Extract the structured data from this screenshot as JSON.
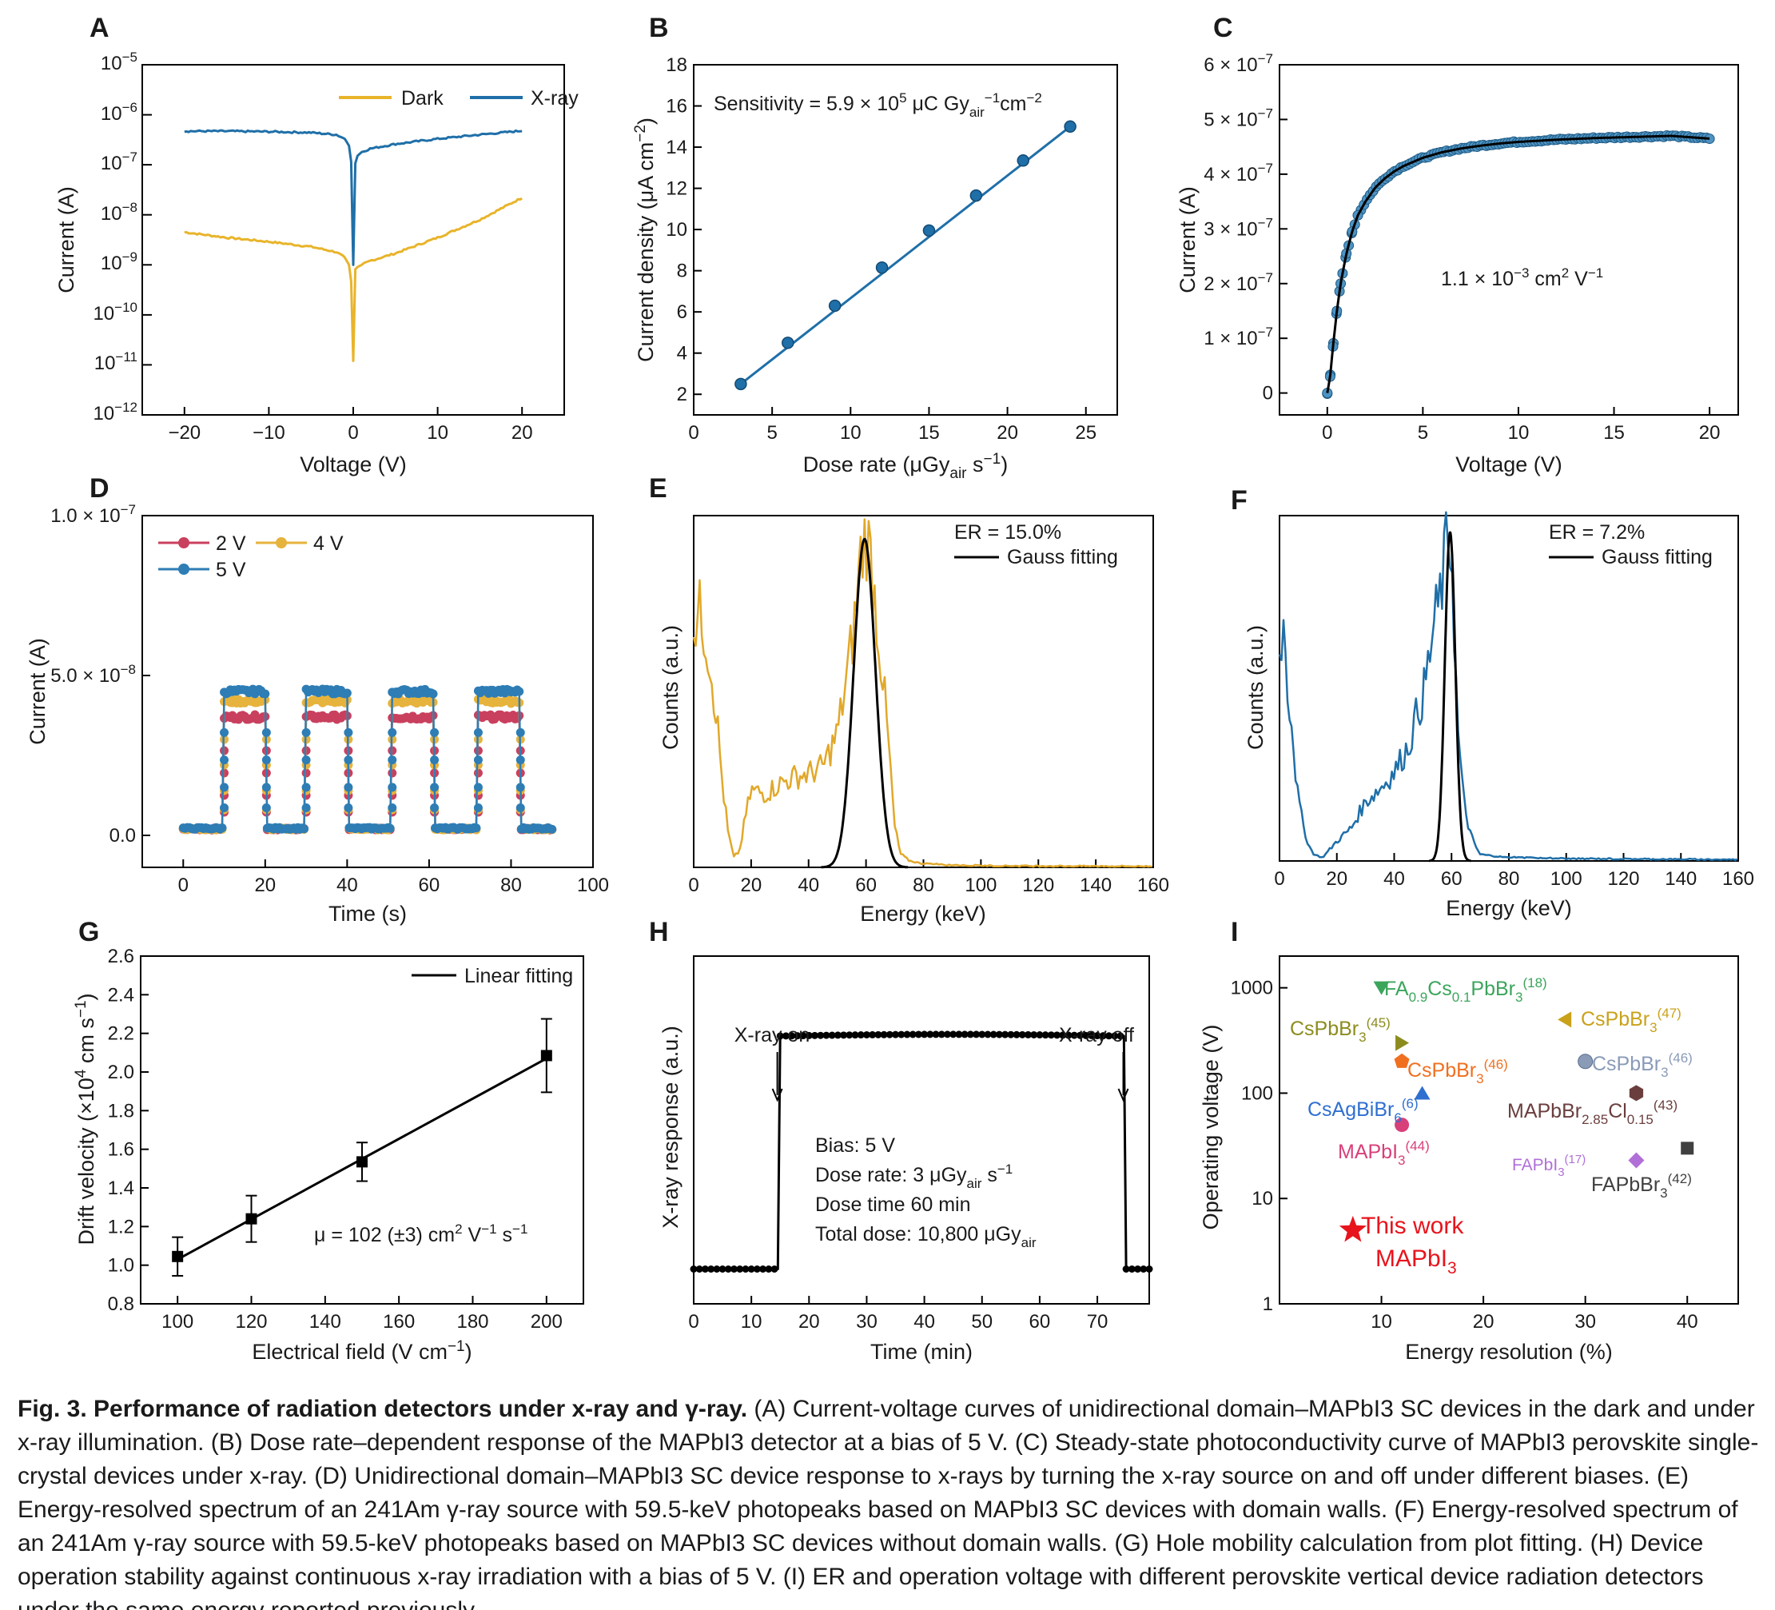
{
  "colors": {
    "dark": "#E8B42A",
    "xray": "#1F6FA8",
    "d2v": "#C9405E",
    "d4v": "#E6B33D",
    "d5v": "#2E7DB5",
    "e": "#E1A82A",
    "f": "#1F6FA8",
    "fit": "#000000",
    "star": "#E8141C"
  },
  "caption": {
    "title": "Fig. 3. Performance of radiation detectors under x-ray and γ-ray.",
    "body": "(A) Current-voltage curves of unidirectional domain–MAPbI3 SC devices in the dark and under x-ray illumination. (B) Dose rate–dependent response of the MAPbI3 detector at a bias of 5 V. (C) Steady-state photoconductivity curve of MAPbI3 perovskite single-crystal devices under x-ray. (D) Unidirectional domain–MAPbI3 SC device response to x-rays by turning the x-ray source on and off under different biases. (E) Energy-resolved spectrum of an 241Am γ-ray source with 59.5-keV photopeaks based on MAPbI3 SC devices with domain walls. (F) Energy-resolved spectrum of an 241Am γ-ray source with 59.5-keV photopeaks based on MAPbI3 SC devices without domain walls. (G) Hole mobility calculation from plot fitting. (H) Device operation stability against continuous x-ray irradiation with a bias of 5 V. (I) ER and operation voltage with different perovskite vertical device radiation detectors under the same energy reported previously."
  },
  "chart_data": [
    {
      "panel": "A",
      "type": "line",
      "xlabel": "Voltage (V)",
      "ylabel": "Current (A)",
      "xlim": [
        -25,
        25
      ],
      "xticks": [
        -20,
        -10,
        0,
        10,
        20
      ],
      "xtick_labels": [
        "−20",
        "−10",
        "0",
        "10",
        "20"
      ],
      "ylim": [
        -12,
        -5
      ],
      "yscale": "log",
      "ytick_labels": [
        "10^-5",
        "10^-6",
        "10^-7",
        "10^-8",
        "10^-9",
        "10^-10",
        "10^-11",
        "10^-12"
      ],
      "legend": "top-right",
      "series": [
        {
          "name": "Dark",
          "x": [
            -20,
            -15,
            -10,
            -5,
            -2,
            -1,
            -0.5,
            -0.2,
            0,
            0.2,
            0.5,
            1,
            2,
            5,
            10,
            15,
            20
          ],
          "y": [
            4.5e-09,
            3.5e-09,
            2.9e-09,
            2.3e-09,
            1.8e-09,
            1.4e-09,
            1e-09,
            4e-10,
            1.2e-11,
            8e-10,
            9e-10,
            1e-09,
            1.2e-09,
            1.7e-09,
            3.5e-09,
            8e-09,
            2.2e-08
          ]
        },
        {
          "name": "X-ray",
          "x": [
            -20,
            -15,
            -10,
            -5,
            -2,
            -1,
            -0.5,
            -0.2,
            0,
            0.2,
            0.5,
            1,
            2,
            5,
            10,
            15,
            20
          ],
          "y": [
            4.7e-07,
            4.7e-07,
            4.6e-07,
            4.4e-07,
            4e-07,
            3.3e-07,
            2.4e-07,
            1e-07,
            1e-09,
            1e-07,
            1.5e-07,
            1.8e-07,
            2.1e-07,
            2.6e-07,
            3.3e-07,
            4e-07,
            4.8e-07
          ]
        }
      ]
    },
    {
      "panel": "B",
      "type": "scatter",
      "xlabel": "Dose rate (μGyair s−1)",
      "ylabel": "Current density (μA cm−2)",
      "annotation": "Sensitivity = 5.9 × 105 μC Gyair−1cm−2",
      "xlim": [
        0,
        27
      ],
      "xticks": [
        0,
        5,
        10,
        15,
        20,
        25
      ],
      "ylim": [
        1,
        18
      ],
      "yticks": [
        2,
        4,
        6,
        8,
        10,
        12,
        14,
        16,
        18
      ],
      "x": [
        3,
        6,
        9,
        12,
        15,
        18,
        21,
        24
      ],
      "y": [
        2.5,
        4.5,
        6.3,
        8.15,
        9.95,
        11.65,
        13.35,
        15.0
      ],
      "fit": {
        "x": [
          3,
          24
        ],
        "y": [
          2.5,
          15.0
        ]
      }
    },
    {
      "panel": "C",
      "type": "scatter",
      "xlabel": "Voltage (V)",
      "ylabel": "Current (A)",
      "annotation": "1.1 × 10−3 cm2 V−1",
      "xlim": [
        -2.5,
        21.5
      ],
      "xticks": [
        0,
        5,
        10,
        15,
        20
      ],
      "ylim": [
        -0.4,
        6
      ],
      "yticks": [
        0,
        1,
        2,
        3,
        4,
        5,
        6
      ],
      "ytick_labels": [
        "0",
        "1 × 10^-7",
        "2 × 10^-7",
        "3 × 10^-7",
        "4 × 10^-7",
        "5 × 10^-7",
        "6 × 10^-7"
      ],
      "y_unit": "1e-7 A",
      "x": [
        0,
        0.15,
        0.3,
        0.5,
        0.7,
        1.0,
        1.3,
        1.6,
        2.0,
        2.5,
        3.0,
        3.5,
        4.0,
        5.0,
        6.0,
        7.0,
        8.0,
        9.0,
        10.0,
        12.0,
        14.0,
        16.0,
        18.0,
        20.0
      ],
      "y": [
        0.0,
        0.3,
        0.85,
        1.5,
        2.0,
        2.55,
        2.95,
        3.25,
        3.5,
        3.75,
        3.92,
        4.05,
        4.15,
        4.3,
        4.4,
        4.47,
        4.52,
        4.56,
        4.59,
        4.63,
        4.66,
        4.68,
        4.7,
        4.65
      ]
    },
    {
      "panel": "D",
      "type": "line",
      "xlabel": "Time (s)",
      "ylabel": "Current (A)",
      "xlim": [
        -10,
        100
      ],
      "xticks": [
        0,
        20,
        40,
        60,
        80,
        100
      ],
      "ylim": [
        -0.1,
        1.0
      ],
      "yticks": [
        0.0,
        0.5,
        1.0
      ],
      "ytick_labels": [
        "0.0",
        "5.0 × 10^-8",
        "1.0 × 10^-7"
      ],
      "y_unit": "1e-7 A",
      "legend": "top-left",
      "on_intervals": [
        [
          10,
          20
        ],
        [
          30,
          40
        ],
        [
          51,
          61
        ],
        [
          72,
          82
        ]
      ],
      "x_range": [
        0,
        90
      ],
      "series": [
        {
          "name": "2 V",
          "off": 0.02,
          "on": 0.37
        },
        {
          "name": "4 V",
          "off": 0.02,
          "on": 0.42
        },
        {
          "name": "5 V",
          "off": 0.022,
          "on": 0.45
        }
      ]
    },
    {
      "panel": "E",
      "type": "line",
      "xlabel": "Energy (keV)",
      "ylabel": "Counts (a.u.)",
      "annotation": "ER = 15.0%",
      "legend": [
        "Gauss fitting"
      ],
      "xlim": [
        0,
        160
      ],
      "xticks": [
        0,
        20,
        40,
        60,
        80,
        100,
        120,
        140,
        160
      ],
      "ylim": [
        0,
        1.0
      ],
      "spectrum": {
        "x": [
          0,
          2,
          4,
          6,
          8,
          10,
          12,
          14,
          16,
          18,
          20,
          25,
          30,
          35,
          40,
          45,
          50,
          53,
          56,
          58,
          60,
          62,
          64,
          66,
          68,
          70,
          72,
          75,
          80,
          90,
          100,
          120,
          160
        ],
        "y": [
          0.72,
          0.76,
          0.7,
          0.6,
          0.45,
          0.25,
          0.1,
          0.03,
          0.05,
          0.15,
          0.23,
          0.22,
          0.25,
          0.27,
          0.28,
          0.3,
          0.4,
          0.55,
          0.73,
          0.92,
          1.0,
          0.9,
          0.72,
          0.55,
          0.35,
          0.12,
          0.04,
          0.02,
          0.01,
          0.005,
          0.003,
          0.002,
          0.001
        ]
      },
      "gauss": {
        "center": 59.5,
        "fwhm": 8.9,
        "amp": 0.98
      }
    },
    {
      "panel": "F",
      "type": "line",
      "xlabel": "Energy (keV)",
      "ylabel": "Counts (a.u.)",
      "annotation": "ER = 7.2%",
      "legend": [
        "Gauss fitting"
      ],
      "xlim": [
        0,
        160
      ],
      "xticks": [
        0,
        20,
        40,
        60,
        80,
        100,
        120,
        140,
        160
      ],
      "ylim": [
        0,
        1.0
      ],
      "spectrum": {
        "x": [
          0,
          1,
          2,
          3,
          4,
          5,
          6,
          8,
          10,
          12,
          15,
          20,
          25,
          30,
          35,
          40,
          45,
          48,
          50,
          52,
          54,
          56,
          58,
          59,
          60,
          61,
          62,
          64,
          66,
          68,
          70,
          80,
          100,
          160
        ],
        "y": [
          0.62,
          0.72,
          0.68,
          0.5,
          0.45,
          0.35,
          0.22,
          0.12,
          0.05,
          0.02,
          0.01,
          0.06,
          0.1,
          0.18,
          0.22,
          0.27,
          0.35,
          0.45,
          0.5,
          0.6,
          0.72,
          0.8,
          0.93,
          1.0,
          0.95,
          0.7,
          0.42,
          0.2,
          0.1,
          0.05,
          0.02,
          0.01,
          0.005,
          0.002
        ]
      },
      "gauss": {
        "center": 59.5,
        "fwhm": 4.3,
        "amp": 1.0
      }
    },
    {
      "panel": "G",
      "type": "scatter",
      "xlabel": "Electrical field (V cm−1)",
      "ylabel": "Drift velocity (×104 cm s−1)",
      "annotation": "μ = 102 (±3) cm2 V−1 s−1",
      "legend": [
        "Linear fitting"
      ],
      "xlim": [
        90,
        210
      ],
      "xticks": [
        100,
        120,
        140,
        160,
        180,
        200
      ],
      "ylim": [
        0.8,
        2.6
      ],
      "yticks": [
        0.8,
        1.0,
        1.2,
        1.4,
        1.6,
        1.8,
        2.0,
        2.2,
        2.4,
        2.6
      ],
      "x": [
        100,
        120,
        150,
        200
      ],
      "y": [
        1.045,
        1.24,
        1.535,
        2.085
      ],
      "err": [
        0.1,
        0.12,
        0.1,
        0.19
      ],
      "fit": {
        "x": [
          100,
          200
        ],
        "y": [
          1.03,
          2.07
        ]
      }
    },
    {
      "panel": "H",
      "type": "line",
      "xlabel": "Time (min)",
      "ylabel": "X-ray response (a.u.)",
      "xlim": [
        0,
        79
      ],
      "xticks": [
        0,
        10,
        20,
        30,
        40,
        50,
        60,
        70
      ],
      "ylim": [
        0,
        1.0
      ],
      "annotations": [
        "X-ray on",
        "X-ray off"
      ],
      "annotation_x": [
        14.5,
        74.5
      ],
      "legend": [
        "Bias: 5 V",
        "Dose rate: 3 μGyair s−1",
        "Dose time 60 min",
        "Total dose: 10,800 μGyair"
      ],
      "off_level": 0.1,
      "on_level": 0.77,
      "on_start": 14.5,
      "on_end": 74.5,
      "x_range": [
        0,
        79
      ]
    },
    {
      "panel": "I",
      "type": "scatter",
      "xlabel": "Energy resolution (%)",
      "ylabel": "Operating voltage (V)",
      "xlim": [
        0,
        45
      ],
      "xticks": [
        10,
        20,
        30,
        40
      ],
      "ylim": [
        1,
        2000
      ],
      "yscale": "log",
      "yticks": [
        1,
        10,
        100,
        1000
      ],
      "points": [
        {
          "label": "FA0.9Cs0.1PbBr3(18)",
          "x": 10,
          "y": 1000,
          "marker": "triangle-down",
          "color": "#3BA55C"
        },
        {
          "label": "CsPbBr3(45)",
          "x": 12,
          "y": 300,
          "marker": "triangle-right",
          "color": "#8C8C1E"
        },
        {
          "label": "CsPbBr3(47)",
          "x": 28,
          "y": 500,
          "marker": "triangle-left",
          "color": "#C9A21A"
        },
        {
          "label": "CsPbBr3(46)",
          "x": 12,
          "y": 200,
          "marker": "pentagon",
          "color": "#F07020"
        },
        {
          "label": "CsPbBr3(46)",
          "x": 30,
          "y": 200,
          "marker": "sphere",
          "color": "#8A9BB8"
        },
        {
          "label": "CsAgBiBr6(6)",
          "x": 14,
          "y": 100,
          "marker": "triangle-up",
          "color": "#2E6FD0"
        },
        {
          "label": "MAPbBr2.85Cl0.15(43)",
          "x": 35,
          "y": 100,
          "marker": "hexagon",
          "color": "#6B3E3E"
        },
        {
          "label": "MAPbI3(44)",
          "x": 12,
          "y": 50,
          "marker": "circle",
          "color": "#D8407A"
        },
        {
          "label": "FAPbI3(17)",
          "x": 35,
          "y": 23,
          "marker": "diamond",
          "color": "#B070D8"
        },
        {
          "label": "FAPbBr3(42)",
          "x": 40,
          "y": 30,
          "marker": "square",
          "color": "#404040"
        },
        {
          "label": "This work MAPbI3",
          "x": 7.2,
          "y": 5,
          "marker": "star",
          "color": "#E8141C"
        }
      ]
    }
  ]
}
